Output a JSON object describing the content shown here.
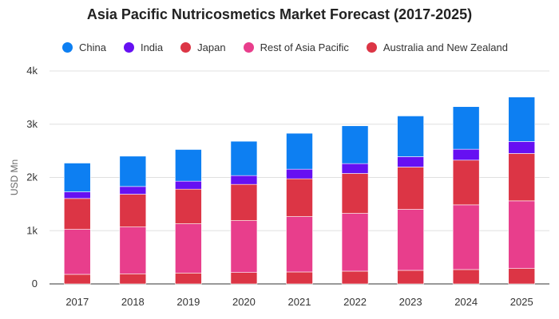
{
  "chart_data": {
    "type": "bar",
    "stacked": true,
    "title": "Asia Pacific Nutricosmetics Market Forecast (2017-2025)",
    "xlabel": "",
    "ylabel": "USD Mn",
    "ylim": [
      0,
      4000
    ],
    "yticks": [
      {
        "value": 0,
        "label": "0"
      },
      {
        "value": 1000,
        "label": "1k"
      },
      {
        "value": 2000,
        "label": "2k"
      },
      {
        "value": 3000,
        "label": "3k"
      },
      {
        "value": 4000,
        "label": "4k"
      }
    ],
    "grid": true,
    "legend_position": "top",
    "categories": [
      "2017",
      "2018",
      "2019",
      "2020",
      "2021",
      "2022",
      "2023",
      "2024",
      "2025"
    ],
    "series": [
      {
        "name": "Australia and New Zealand",
        "color": "#dc3545",
        "values": [
          180,
          190,
          205,
          215,
          225,
          240,
          255,
          270,
          290
        ]
      },
      {
        "name": "Rest of Asia Pacific",
        "color": "#e83e8c",
        "values": [
          845,
          880,
          925,
          975,
          1040,
          1085,
          1145,
          1215,
          1270
        ]
      },
      {
        "name": "Japan",
        "color": "#dc3545",
        "values": [
          580,
          615,
          650,
          680,
          710,
          750,
          795,
          840,
          890
        ]
      },
      {
        "name": "India",
        "color": "#6610f2",
        "values": [
          125,
          145,
          150,
          165,
          180,
          185,
          195,
          205,
          225
        ]
      },
      {
        "name": "China",
        "color": "#0d7ff2",
        "values": [
          540,
          570,
          595,
          645,
          675,
          710,
          765,
          800,
          835
        ]
      }
    ],
    "legend_order": [
      "China",
      "India",
      "Japan",
      "Rest of Asia Pacific",
      "Australia and New Zealand"
    ]
  }
}
